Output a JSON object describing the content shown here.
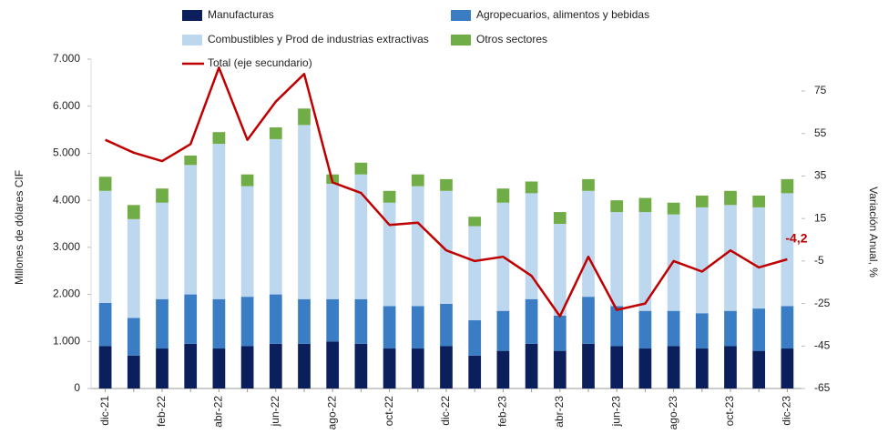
{
  "chart_data": {
    "type": "bar",
    "stacked": true,
    "categories": [
      "dic-21",
      null,
      "feb-22",
      null,
      "abr-22",
      null,
      "jun-22",
      null,
      "ago-22",
      null,
      "oct-22",
      null,
      "dic-22",
      null,
      "feb-23",
      null,
      "abr-23",
      null,
      "jun-23",
      null,
      "ago-23",
      null,
      "oct-23",
      null,
      "dic-23"
    ],
    "series": [
      {
        "name": "Manufacturas",
        "color": "#0b1f5c",
        "values": [
          900,
          700,
          850,
          950,
          850,
          900,
          950,
          950,
          1000,
          950,
          850,
          850,
          900,
          700,
          800,
          950,
          800,
          950,
          900,
          850,
          900,
          850,
          900,
          800,
          850
        ]
      },
      {
        "name": "Agropecuarios, alimentos y bebidas",
        "color": "#3a7dc4",
        "values": [
          920,
          800,
          1050,
          1050,
          1050,
          1050,
          1050,
          950,
          900,
          950,
          900,
          900,
          900,
          750,
          850,
          950,
          750,
          1000,
          850,
          800,
          750,
          750,
          750,
          900,
          900
        ]
      },
      {
        "name": "Combustibles y Prod de industrias extractivas",
        "color": "#bdd7ee",
        "values": [
          2380,
          2100,
          2050,
          2750,
          3300,
          2350,
          3300,
          3700,
          2450,
          2650,
          2200,
          2550,
          2400,
          2000,
          2300,
          2250,
          1950,
          2250,
          2000,
          2100,
          2050,
          2250,
          2250,
          2150,
          2400
        ]
      },
      {
        "name": "Otros sectores",
        "color": "#70ad47",
        "values": [
          300,
          300,
          300,
          200,
          250,
          250,
          250,
          350,
          200,
          250,
          250,
          250,
          250,
          200,
          300,
          250,
          250,
          250,
          250,
          300,
          250,
          250,
          300,
          250,
          300
        ]
      },
      {
        "name": "Total (eje secundario)",
        "color": "#c00000",
        "type": "line",
        "axis": "y2",
        "values": [
          52,
          46,
          42,
          50,
          86,
          52,
          70,
          83,
          32,
          27,
          12,
          13,
          0,
          -5,
          -3,
          -12,
          -31,
          -3,
          -28,
          -25,
          -5,
          -10,
          0,
          -8,
          -4.2
        ],
        "value_labels": [
          null,
          null,
          null,
          null,
          null,
          null,
          null,
          null,
          null,
          null,
          null,
          null,
          null,
          null,
          null,
          null,
          null,
          null,
          null,
          null,
          null,
          null,
          null,
          null,
          "-4,2"
        ]
      }
    ],
    "ylabel": "Millones de dólares CIF",
    "y2label": "Variación Anual, %",
    "ylim": [
      0,
      7000
    ],
    "yticks": [
      0,
      {
        "value": 1000,
        "label": "1.000"
      },
      {
        "value": 2000,
        "label": "2.000"
      },
      {
        "value": 3000,
        "label": "3.000"
      },
      {
        "value": 4000,
        "label": "4.000"
      },
      {
        "value": 5000,
        "label": "5.000"
      },
      {
        "value": 6000,
        "label": "6.000"
      },
      {
        "value": 7000,
        "label": "7.000"
      }
    ],
    "y2lim": [
      -65,
      90
    ],
    "y2ticks": [
      -65,
      -45,
      -25,
      -5,
      15,
      35,
      55,
      75
    ],
    "grid": false
  }
}
